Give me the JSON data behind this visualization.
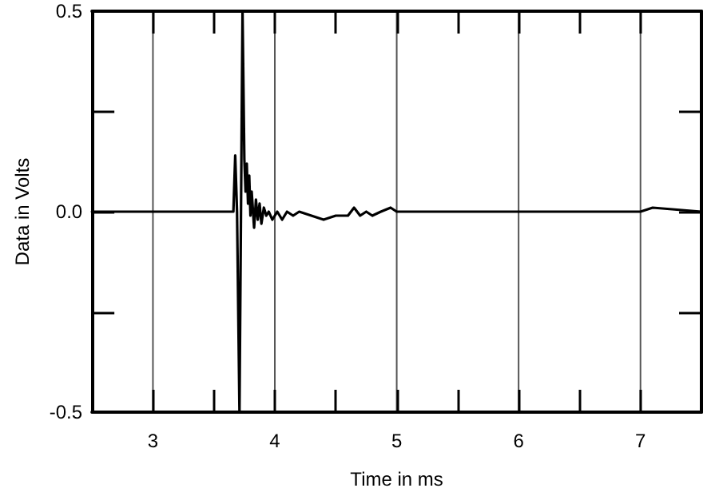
{
  "chart_data": {
    "type": "line",
    "xlabel": "Time in ms",
    "ylabel": "Data in Volts",
    "x": [
      2.5,
      3.66,
      3.675,
      3.69,
      3.71,
      3.735,
      3.75,
      3.76,
      3.77,
      3.78,
      3.79,
      3.8,
      3.81,
      3.83,
      3.845,
      3.86,
      3.875,
      3.89,
      3.91,
      3.93,
      3.95,
      3.98,
      4.02,
      4.06,
      4.1,
      4.15,
      4.2,
      4.3,
      4.4,
      4.5,
      4.6,
      4.65,
      4.7,
      4.75,
      4.8,
      4.87,
      4.95,
      5.0,
      5.1,
      6.0,
      7.0,
      7.1,
      7.5
    ],
    "series": [
      {
        "color": "#000000",
        "values": [
          0,
          0,
          0.14,
          0.0,
          -0.5,
          0.5,
          0.13,
          0.05,
          0.12,
          0.02,
          0.09,
          -0.01,
          0.05,
          -0.04,
          0.03,
          -0.02,
          0.02,
          -0.03,
          0.01,
          -0.01,
          0.0,
          -0.02,
          0.0,
          -0.02,
          0.0,
          -0.01,
          0.0,
          -0.01,
          -0.02,
          -0.01,
          -0.01,
          0.01,
          -0.01,
          0.0,
          -0.01,
          0.0,
          0.01,
          0.0,
          0.0,
          0.0,
          0.0,
          0.01,
          0.0
        ]
      }
    ],
    "xlim": [
      2.5,
      7.5
    ],
    "xticks": [
      3,
      {
        "value": 3.5,
        "label": null
      },
      4,
      {
        "value": 4.5,
        "label": null
      },
      5,
      {
        "value": 5.5,
        "label": null
      },
      6,
      {
        "value": 6.5,
        "label": null
      },
      7
    ],
    "ylim": [
      -0.5,
      0.5
    ],
    "yticks": [
      {
        "value": -0.5,
        "label": "-0.5"
      },
      {
        "value": -0.25,
        "label": null
      },
      {
        "value": 0,
        "label": "0.0"
      },
      {
        "value": 0.25,
        "label": null
      },
      {
        "value": 0.5,
        "label": "0.5"
      }
    ],
    "grid": "x",
    "marker": "none",
    "line_style": "solid"
  }
}
